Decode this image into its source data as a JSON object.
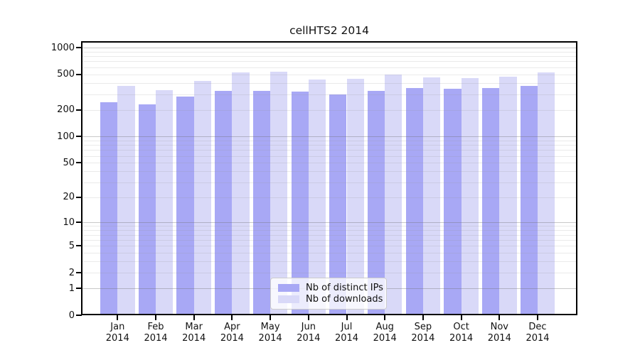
{
  "title": "cellHTS2 2014",
  "chart_data": {
    "type": "bar",
    "title": "cellHTS2 2014",
    "categories": [
      "Jan 2014",
      "Feb 2014",
      "Mar 2014",
      "Apr 2014",
      "May 2014",
      "Jun 2014",
      "Jul 2014",
      "Aug 2014",
      "Sep 2014",
      "Oct 2014",
      "Nov 2014",
      "Dec 2014"
    ],
    "series": [
      {
        "name": "Nb of distinct IPs",
        "color": "#a8a8f5",
        "values": [
          242,
          230,
          282,
          325,
          328,
          319,
          300,
          325,
          349,
          343,
          353,
          371
        ]
      },
      {
        "name": "Nb of downloads",
        "color": "#d9d9f8",
        "values": [
          371,
          334,
          419,
          526,
          535,
          437,
          445,
          494,
          459,
          453,
          473,
          522
        ]
      }
    ],
    "yscale": "log1p",
    "yticks": [
      0,
      1,
      2,
      5,
      10,
      20,
      50,
      100,
      200,
      500,
      1000
    ],
    "ytick_labels": [
      "0",
      "1",
      "2",
      "5",
      "10",
      "20",
      "50",
      "100",
      "200",
      "500",
      "1000"
    ],
    "ylim": [
      0,
      1160
    ],
    "xlabel": "",
    "ylabel": "",
    "grid": "horizontal log minor + major",
    "legend_position": "lower center"
  },
  "colors": {
    "distinct_ips_bar": "#a8a8f5",
    "downloads_bar": "#d9d9f8",
    "spine": "#000000",
    "background": "#ffffff"
  }
}
